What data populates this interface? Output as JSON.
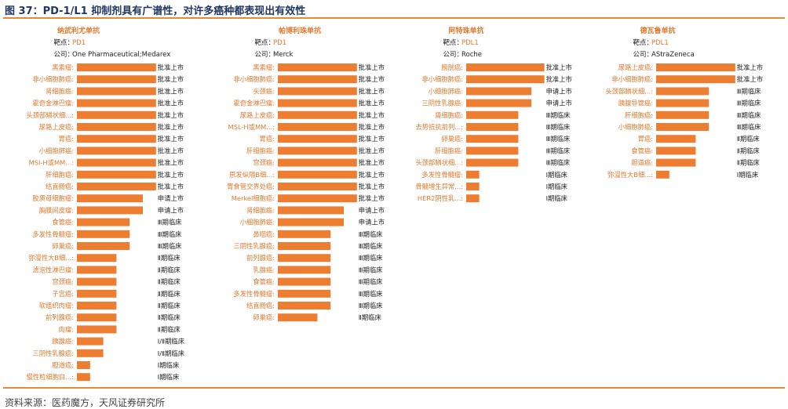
{
  "figure": {
    "title": "图 37：PD-1/L1 抑制剂具有广谱性，对许多癌种都表现出有效性",
    "source": "资料来源：医药魔方，天风证券研究所",
    "target_label": "靶点：",
    "company_label": "公司："
  },
  "colors": {
    "bar": "#ed7d31",
    "category_text": "#e07a30",
    "header_text": "#e07a30",
    "rule": "#e38b3a"
  },
  "chart_data": [
    {
      "type": "bar",
      "orientation": "horizontal",
      "title": "纳武利尤单抗",
      "target": "PD1",
      "company": "One Pharmaceutical;Medarex",
      "value_scale": [
        "Ⅰ期临床",
        "Ⅰ/Ⅱ期临床",
        "Ⅱ期临床",
        "Ⅲ期临床",
        "申请上市",
        "批准上市"
      ],
      "categories": [
        "黑素瘤:",
        "非小细胞肺癌:",
        "肾细胞癌:",
        "霍奇金淋巴瘤:",
        "头颈部鳞状细...:",
        "尿路上皮癌:",
        "胃癌:",
        "小细胞肺癌:",
        "MSI-H或MM...:",
        "肝细胞癌:",
        "结直肠癌:",
        "胶质母细胞瘤:",
        "胸膜间皮瘤:",
        "食管癌:",
        "多发性骨髓瘤:",
        "卵巢癌:",
        "弥漫性大B细...:",
        "滤泡性淋巴瘤:",
        "宫颈癌:",
        "子宫癌:",
        "软组织肉瘤:",
        "前列腺癌:",
        "肉瘤:",
        "胰腺癌:",
        "三阴性乳腺癌:",
        "胆道癌:",
        "慢性粒细胞白...:"
      ],
      "values": [
        6,
        6,
        6,
        6,
        6,
        6,
        6,
        6,
        6,
        6,
        6,
        5,
        5,
        4,
        4,
        4,
        3,
        3,
        3,
        3,
        3,
        3,
        3,
        2,
        2,
        1,
        1
      ],
      "value_labels": [
        "批准上市",
        "批准上市",
        "批准上市",
        "批准上市",
        "批准上市",
        "批准上市",
        "批准上市",
        "批准上市",
        "批准上市",
        "批准上市",
        "批准上市",
        "申请上市",
        "申请上市",
        "Ⅲ期临床",
        "Ⅲ期临床",
        "Ⅲ期临床",
        "Ⅱ期临床",
        "Ⅱ期临床",
        "Ⅱ期临床",
        "Ⅱ期临床",
        "Ⅱ期临床",
        "Ⅱ期临床",
        "Ⅱ期临床",
        "Ⅰ/Ⅱ期临床",
        "Ⅰ/Ⅱ期临床",
        "Ⅰ期临床",
        "Ⅰ期临床"
      ]
    },
    {
      "type": "bar",
      "orientation": "horizontal",
      "title": "帕博利珠单抗",
      "target": "PD1",
      "company": "Merck",
      "value_scale": [
        "Ⅰ期临床",
        "Ⅰ/Ⅱ期临床",
        "Ⅱ期临床",
        "Ⅲ期临床",
        "申请上市",
        "批准上市"
      ],
      "categories": [
        "黑素瘤:",
        "非小细胞肺癌:",
        "头颈癌:",
        "霍奇金淋巴瘤:",
        "尿路上皮癌:",
        "MSL-H或MM...:",
        "胃癌:",
        "肝细胞癌:",
        "宫颈癌:",
        "原发纵隔B细...:",
        "胃食管交界处癌:",
        "Merkel细胞癌:",
        "肾细胞癌:",
        "小细胞肺癌:",
        "鼻咽癌:",
        "三阴性乳腺癌:",
        "前列腺癌:",
        "乳腺癌:",
        "食管癌:",
        "多发性骨髓瘤:",
        "结直肠癌:",
        "卵巢癌:"
      ],
      "values": [
        6,
        6,
        6,
        6,
        6,
        6,
        6,
        6,
        6,
        6,
        6,
        6,
        5,
        5,
        4,
        4,
        4,
        4,
        4,
        4,
        4,
        3
      ],
      "value_labels": [
        "批准上市",
        "批准上市",
        "批准上市",
        "批准上市",
        "批准上市",
        "批准上市",
        "批准上市",
        "批准上市",
        "批准上市",
        "批准上市",
        "批准上市",
        "批准上市",
        "申请上市",
        "申请上市",
        "Ⅲ期临床",
        "Ⅲ期临床",
        "Ⅲ期临床",
        "Ⅲ期临床",
        "Ⅲ期临床",
        "Ⅲ期临床",
        "Ⅲ期临床",
        "Ⅱ期临床"
      ]
    },
    {
      "type": "bar",
      "orientation": "horizontal",
      "title": "阿特珠单抗",
      "target": "PDL1",
      "company": "Roche",
      "value_scale": [
        "Ⅰ期临床",
        "Ⅰ/Ⅱ期临床",
        "Ⅱ期临床",
        "Ⅲ期临床",
        "申请上市",
        "批准上市"
      ],
      "categories": [
        "膀胱癌:",
        "非小细胞肺癌:",
        "小细胞肺癌:",
        "三阴性乳腺癌:",
        "肾细胞癌:",
        "去势抵抗前列...:",
        "卵巢癌:",
        "肝细胞癌:",
        "头颈部鳞状细...:",
        "多发性骨髓瘤:",
        "骨髓增生异常...:",
        "HER2阴性乳...:"
      ],
      "values": [
        6,
        6,
        5,
        5,
        4,
        4,
        4,
        4,
        4,
        1,
        1,
        1
      ],
      "value_labels": [
        "批准上市",
        "批准上市",
        "申请上市",
        "申请上市",
        "Ⅲ期临床",
        "Ⅲ期临床",
        "Ⅲ期临床",
        "Ⅲ期临床",
        "Ⅲ期临床",
        "Ⅰ期临床",
        "Ⅰ期临床",
        "Ⅰ期临床"
      ]
    },
    {
      "type": "bar",
      "orientation": "horizontal",
      "title": "德瓦鲁单抗",
      "target": "PDL1",
      "company": "AStraZeneca",
      "value_scale": [
        "Ⅰ期临床",
        "Ⅰ/Ⅱ期临床",
        "Ⅱ期临床",
        "Ⅲ期临床",
        "申请上市",
        "批准上市"
      ],
      "categories": [
        "尿路上皮癌:",
        "非小细胞肺癌:",
        "头颈部鳞状细...:",
        "胰腺导管癌:",
        "肝细胞癌:",
        "小细胞肺癌:",
        "胃癌:",
        "食管癌:",
        "胆道癌:",
        "弥漫性大B细...:"
      ],
      "values": [
        6,
        6,
        4,
        4,
        4,
        4,
        3,
        3,
        3,
        1
      ],
      "value_labels": [
        "批准上市",
        "批准上市",
        "Ⅲ期临床",
        "Ⅲ期临床",
        "Ⅲ期临床",
        "Ⅲ期临床",
        "Ⅱ期临床",
        "Ⅱ期临床",
        "Ⅱ期临床",
        "Ⅰ期临床"
      ]
    }
  ]
}
